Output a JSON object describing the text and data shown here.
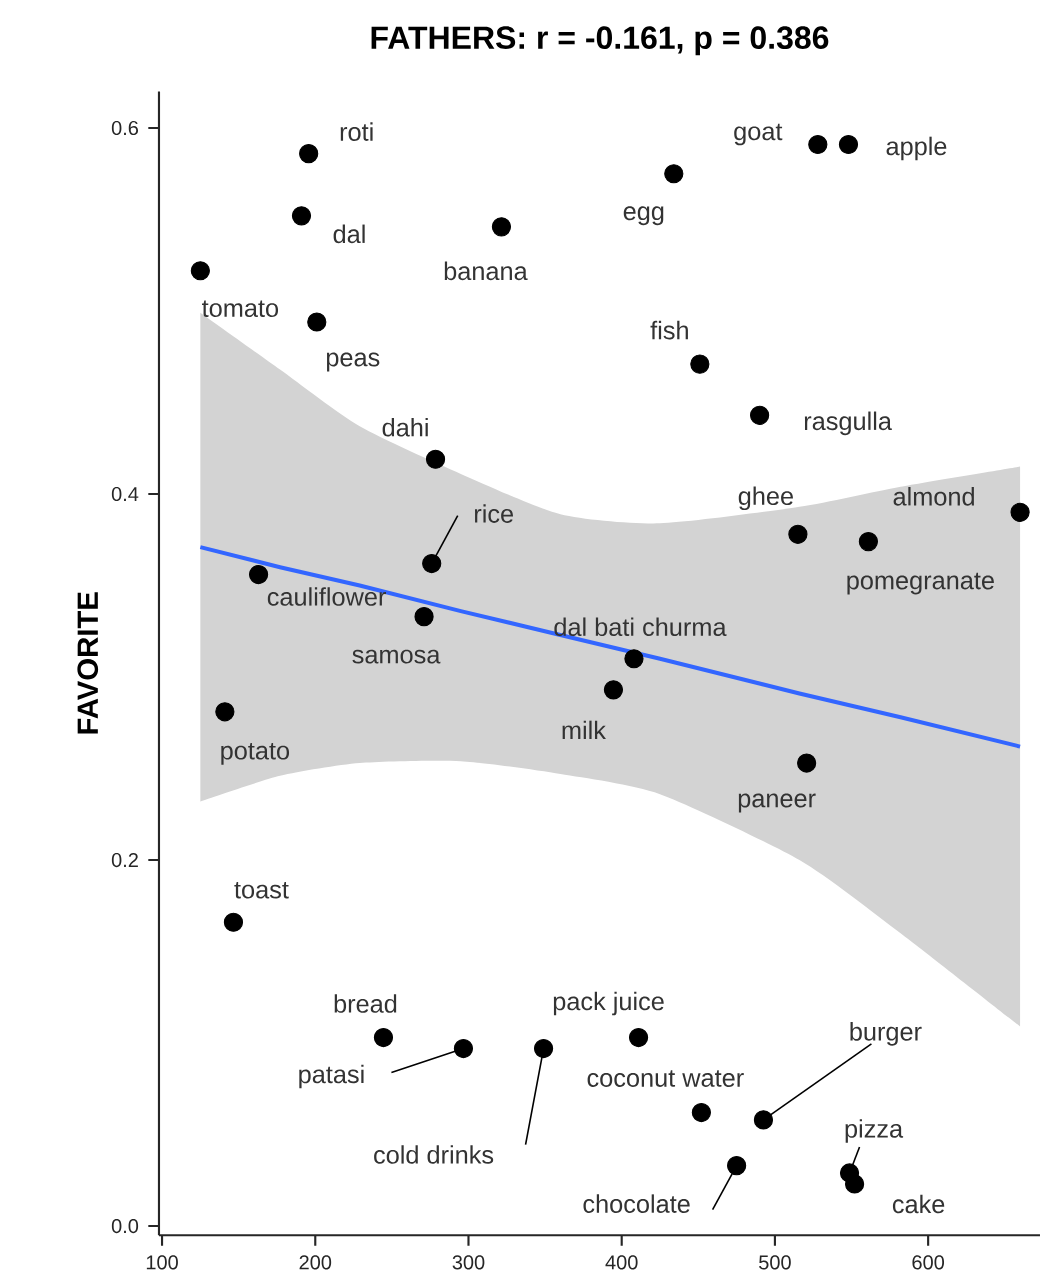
{
  "chart_data": {
    "type": "scatter",
    "title": "FATHERS: r = -0.161, p = 0.386",
    "ylabel": "FAVORITE",
    "marker": "circle",
    "xlim": [
      98,
      673
    ],
    "ylim": [
      -0.005,
      0.62
    ],
    "xticks": [
      100,
      200,
      300,
      400,
      500,
      600
    ],
    "yticks": [
      {
        "value": 0,
        "label": "0.0"
      },
      0.2,
      0.4,
      0.6
    ],
    "series": [
      {
        "color": "#000000",
        "x": [
          195.7,
          191,
          125,
          201,
          321.5,
          434,
          451,
          278.5,
          276,
          163,
          271,
          408,
          528,
          548,
          490,
          515,
          561,
          660,
          394.6,
          141,
          146.6,
          244.5,
          296.7,
          349,
          411,
          452,
          520.7,
          492.5,
          475,
          548.7,
          552
        ],
        "values": [
          0.586,
          0.552,
          0.522,
          0.494,
          0.546,
          0.575,
          0.471,
          0.419,
          0.362,
          0.356,
          0.333,
          0.31,
          0.591,
          0.591,
          0.443,
          0.378,
          0.374,
          0.39,
          0.293,
          0.281,
          0.166,
          0.103,
          0.097,
          0.097,
          0.103,
          0.062,
          0.253,
          0.058,
          0.033,
          0.029,
          0.023
        ]
      },
      {
        "type": "line",
        "color": "#3366ff",
        "marker": "none",
        "x": [
          125,
          177,
          229,
          295,
          360,
          425,
          516,
          582,
          660
        ],
        "values": [
          0.371,
          0.36,
          0.35,
          0.336,
          0.323,
          0.31,
          0.291,
          0.278,
          0.262
        ],
        "lower": [
          0.232,
          0.246,
          0.253,
          0.254,
          0.247,
          0.236,
          0.2,
          0.16,
          0.109
        ],
        "upper": [
          0.499,
          0.468,
          0.437,
          0.411,
          0.389,
          0.384,
          0.393,
          0.404,
          0.415
        ]
      }
    ],
    "annotations": [
      {
        "text": "roti",
        "x": 195.7,
        "y": 0.586
      },
      {
        "text": "dal",
        "x": 191,
        "y": 0.552
      },
      {
        "text": "tomato",
        "x": 125,
        "y": 0.522
      },
      {
        "text": "peas",
        "x": 201,
        "y": 0.494
      },
      {
        "text": "banana",
        "x": 321.5,
        "y": 0.546
      },
      {
        "text": "egg",
        "x": 434,
        "y": 0.575
      },
      {
        "text": "fish",
        "x": 451,
        "y": 0.471
      },
      {
        "text": "dahi",
        "x": 278.5,
        "y": 0.419
      },
      {
        "text": "rice",
        "x": 276,
        "y": 0.362
      },
      {
        "text": "cauliflower",
        "x": 163,
        "y": 0.356
      },
      {
        "text": "samosa",
        "x": 271,
        "y": 0.333
      },
      {
        "text": "dal bati churma",
        "x": 408,
        "y": 0.31
      },
      {
        "text": "goat",
        "x": 528,
        "y": 0.591
      },
      {
        "text": "apple",
        "x": 548,
        "y": 0.591
      },
      {
        "text": "rasgulla",
        "x": 490,
        "y": 0.443
      },
      {
        "text": "ghee",
        "x": 515,
        "y": 0.378
      },
      {
        "text": "pomegranate",
        "x": 561,
        "y": 0.374
      },
      {
        "text": "almond",
        "x": 660,
        "y": 0.39
      },
      {
        "text": "milk",
        "x": 394.6,
        "y": 0.293
      },
      {
        "text": "potato",
        "x": 141,
        "y": 0.281
      },
      {
        "text": "toast",
        "x": 146.6,
        "y": 0.166
      },
      {
        "text": "bread",
        "x": 244.5,
        "y": 0.103
      },
      {
        "text": "patasi",
        "x": 296.7,
        "y": 0.097
      },
      {
        "text": "cold drinks",
        "x": 349,
        "y": 0.097
      },
      {
        "text": "pack juice",
        "x": 411,
        "y": 0.103
      },
      {
        "text": "coconut water",
        "x": 452,
        "y": 0.062
      },
      {
        "text": "paneer",
        "x": 520.7,
        "y": 0.253
      },
      {
        "text": "burger",
        "x": 492.5,
        "y": 0.058
      },
      {
        "text": "chocolate",
        "x": 475,
        "y": 0.033
      },
      {
        "text": "pizza",
        "x": 548.7,
        "y": 0.029
      },
      {
        "text": "cake",
        "x": 552,
        "y": 0.023
      }
    ]
  }
}
